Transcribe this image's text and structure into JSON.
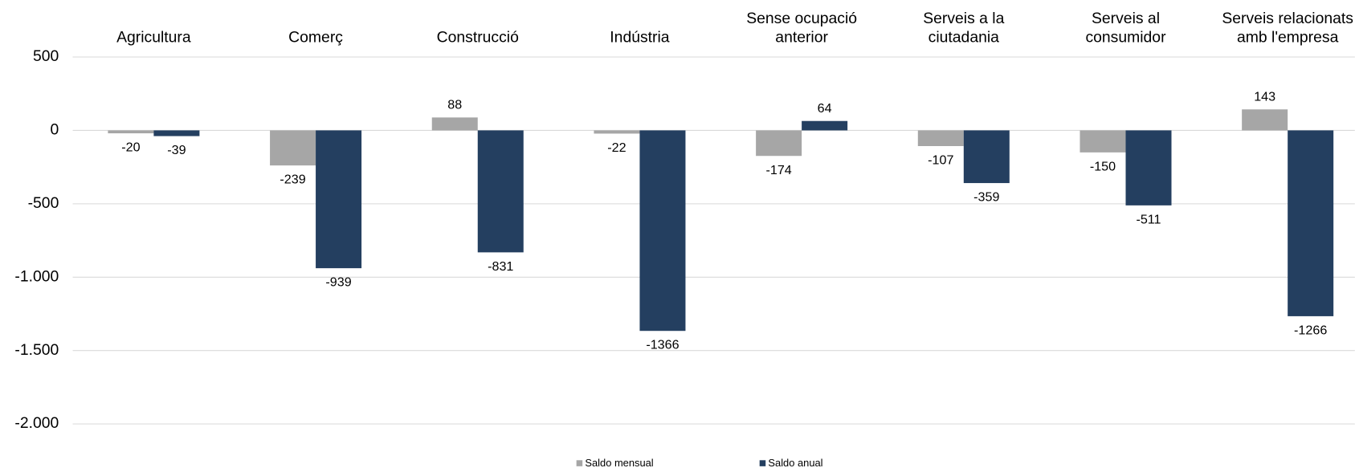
{
  "chart_data": {
    "type": "bar",
    "categories": [
      "Agricultura",
      "Comerç",
      "Construcció",
      "Indústria",
      "Sense ocupació anterior",
      "Serveis a la ciutadania",
      "Serveis al consumidor",
      "Serveis relacionats amb l'empresa"
    ],
    "series": [
      {
        "name": "Saldo mensual",
        "color": "#a6a6a6",
        "values": [
          -20,
          -239,
          88,
          -22,
          -174,
          -107,
          -150,
          143
        ]
      },
      {
        "name": "Saldo anual",
        "color": "#243f60",
        "values": [
          -39,
          -939,
          -831,
          -1366,
          64,
          -359,
          -511,
          -1266
        ]
      }
    ],
    "ylim": [
      -2000,
      500
    ],
    "yticks": [
      {
        "value": -2000,
        "label": "-2.000"
      },
      {
        "value": -1500,
        "label": "-1.500"
      },
      {
        "value": -1000,
        "label": "-1.000"
      },
      -500,
      0,
      500
    ],
    "grid": true,
    "legend": "bottom"
  }
}
